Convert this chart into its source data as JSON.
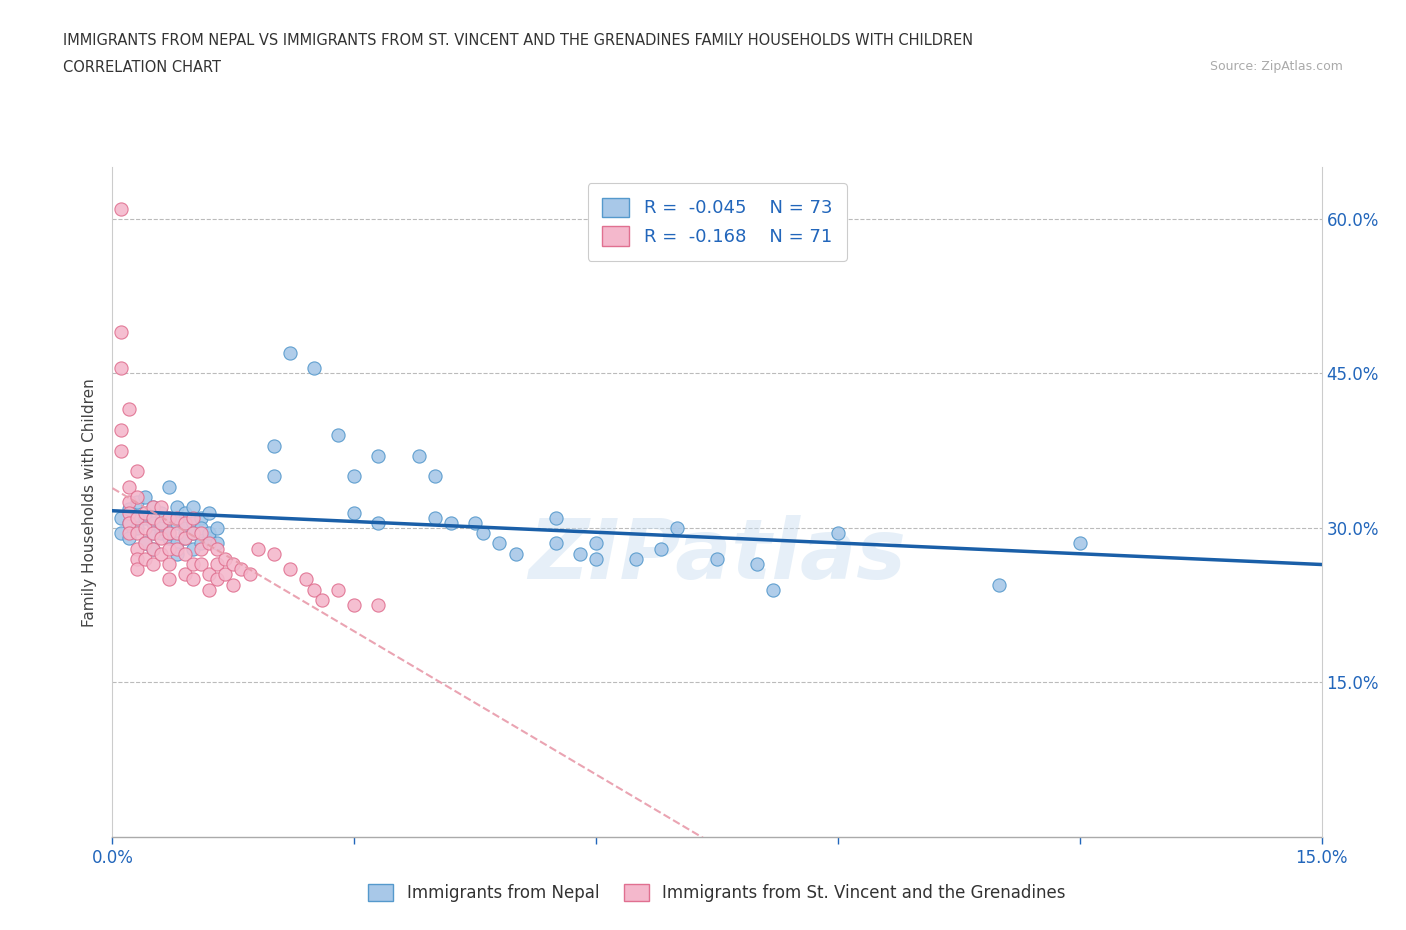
{
  "title_line1": "IMMIGRANTS FROM NEPAL VS IMMIGRANTS FROM ST. VINCENT AND THE GRENADINES FAMILY HOUSEHOLDS WITH CHILDREN",
  "title_line2": "CORRELATION CHART",
  "source_text": "Source: ZipAtlas.com",
  "ylabel": "Family Households with Children",
  "xlim": [
    0.0,
    0.15
  ],
  "ylim": [
    0.0,
    0.65
  ],
  "yticks": [
    0.0,
    0.15,
    0.3,
    0.45,
    0.6
  ],
  "yticklabels": [
    "",
    "15.0%",
    "30.0%",
    "45.0%",
    "60.0%"
  ],
  "xticks": [
    0.0,
    0.03,
    0.06,
    0.09,
    0.12,
    0.15
  ],
  "xticklabels": [
    "0.0%",
    "",
    "",
    "",
    "",
    "15.0%"
  ],
  "nepal_color": "#a8c8e8",
  "nepal_edge_color": "#5599cc",
  "svg_color": "#f4b8cc",
  "svg_edge_color": "#e07090",
  "nepal_R": -0.045,
  "nepal_N": 73,
  "svg_R": -0.168,
  "svg_N": 71,
  "legend_label1": "Immigrants from Nepal",
  "legend_label2": "Immigrants from St. Vincent and the Grenadines",
  "watermark": "ZIPatlas",
  "nepal_line_color": "#1a5fa8",
  "svg_line_color": "#e89aaa",
  "grid_color": "#bbbbbb",
  "nepal_scatter": [
    [
      0.001,
      0.31
    ],
    [
      0.001,
      0.295
    ],
    [
      0.002,
      0.318
    ],
    [
      0.002,
      0.305
    ],
    [
      0.002,
      0.29
    ],
    [
      0.003,
      0.312
    ],
    [
      0.003,
      0.325
    ],
    [
      0.003,
      0.3
    ],
    [
      0.004,
      0.285
    ],
    [
      0.004,
      0.33
    ],
    [
      0.004,
      0.31
    ],
    [
      0.005,
      0.295
    ],
    [
      0.005,
      0.32
    ],
    [
      0.005,
      0.305
    ],
    [
      0.005,
      0.28
    ],
    [
      0.006,
      0.295
    ],
    [
      0.006,
      0.315
    ],
    [
      0.006,
      0.3
    ],
    [
      0.007,
      0.29
    ],
    [
      0.007,
      0.34
    ],
    [
      0.007,
      0.31
    ],
    [
      0.007,
      0.295
    ],
    [
      0.008,
      0.285
    ],
    [
      0.008,
      0.32
    ],
    [
      0.008,
      0.305
    ],
    [
      0.008,
      0.275
    ],
    [
      0.009,
      0.315
    ],
    [
      0.009,
      0.295
    ],
    [
      0.009,
      0.3
    ],
    [
      0.009,
      0.29
    ],
    [
      0.01,
      0.28
    ],
    [
      0.01,
      0.305
    ],
    [
      0.01,
      0.32
    ],
    [
      0.01,
      0.295
    ],
    [
      0.011,
      0.31
    ],
    [
      0.011,
      0.285
    ],
    [
      0.011,
      0.3
    ],
    [
      0.012,
      0.29
    ],
    [
      0.012,
      0.315
    ],
    [
      0.012,
      0.295
    ],
    [
      0.013,
      0.3
    ],
    [
      0.013,
      0.285
    ],
    [
      0.02,
      0.38
    ],
    [
      0.02,
      0.35
    ],
    [
      0.022,
      0.47
    ],
    [
      0.025,
      0.455
    ],
    [
      0.028,
      0.39
    ],
    [
      0.03,
      0.315
    ],
    [
      0.03,
      0.35
    ],
    [
      0.033,
      0.305
    ],
    [
      0.033,
      0.37
    ],
    [
      0.038,
      0.37
    ],
    [
      0.04,
      0.35
    ],
    [
      0.04,
      0.31
    ],
    [
      0.042,
      0.305
    ],
    [
      0.045,
      0.305
    ],
    [
      0.046,
      0.295
    ],
    [
      0.048,
      0.285
    ],
    [
      0.05,
      0.275
    ],
    [
      0.055,
      0.285
    ],
    [
      0.055,
      0.31
    ],
    [
      0.058,
      0.275
    ],
    [
      0.06,
      0.27
    ],
    [
      0.06,
      0.285
    ],
    [
      0.065,
      0.27
    ],
    [
      0.068,
      0.28
    ],
    [
      0.07,
      0.3
    ],
    [
      0.075,
      0.27
    ],
    [
      0.08,
      0.265
    ],
    [
      0.082,
      0.24
    ],
    [
      0.09,
      0.295
    ],
    [
      0.11,
      0.245
    ],
    [
      0.12,
      0.285
    ]
  ],
  "svg_scatter": [
    [
      0.001,
      0.61
    ],
    [
      0.001,
      0.49
    ],
    [
      0.001,
      0.455
    ],
    [
      0.001,
      0.395
    ],
    [
      0.001,
      0.375
    ],
    [
      0.002,
      0.415
    ],
    [
      0.002,
      0.34
    ],
    [
      0.002,
      0.325
    ],
    [
      0.002,
      0.315
    ],
    [
      0.002,
      0.305
    ],
    [
      0.002,
      0.295
    ],
    [
      0.003,
      0.355
    ],
    [
      0.003,
      0.33
    ],
    [
      0.003,
      0.31
    ],
    [
      0.003,
      0.295
    ],
    [
      0.003,
      0.28
    ],
    [
      0.003,
      0.27
    ],
    [
      0.003,
      0.26
    ],
    [
      0.004,
      0.315
    ],
    [
      0.004,
      0.3
    ],
    [
      0.004,
      0.285
    ],
    [
      0.004,
      0.27
    ],
    [
      0.005,
      0.32
    ],
    [
      0.005,
      0.31
    ],
    [
      0.005,
      0.295
    ],
    [
      0.005,
      0.28
    ],
    [
      0.005,
      0.265
    ],
    [
      0.006,
      0.32
    ],
    [
      0.006,
      0.305
    ],
    [
      0.006,
      0.29
    ],
    [
      0.006,
      0.275
    ],
    [
      0.007,
      0.31
    ],
    [
      0.007,
      0.295
    ],
    [
      0.007,
      0.28
    ],
    [
      0.007,
      0.265
    ],
    [
      0.007,
      0.25
    ],
    [
      0.008,
      0.31
    ],
    [
      0.008,
      0.295
    ],
    [
      0.008,
      0.28
    ],
    [
      0.009,
      0.305
    ],
    [
      0.009,
      0.29
    ],
    [
      0.009,
      0.275
    ],
    [
      0.009,
      0.255
    ],
    [
      0.01,
      0.31
    ],
    [
      0.01,
      0.295
    ],
    [
      0.01,
      0.265
    ],
    [
      0.01,
      0.25
    ],
    [
      0.011,
      0.295
    ],
    [
      0.011,
      0.28
    ],
    [
      0.011,
      0.265
    ],
    [
      0.012,
      0.285
    ],
    [
      0.012,
      0.255
    ],
    [
      0.012,
      0.24
    ],
    [
      0.013,
      0.28
    ],
    [
      0.013,
      0.265
    ],
    [
      0.013,
      0.25
    ],
    [
      0.014,
      0.27
    ],
    [
      0.014,
      0.255
    ],
    [
      0.015,
      0.265
    ],
    [
      0.015,
      0.245
    ],
    [
      0.016,
      0.26
    ],
    [
      0.017,
      0.255
    ],
    [
      0.018,
      0.28
    ],
    [
      0.02,
      0.275
    ],
    [
      0.022,
      0.26
    ],
    [
      0.024,
      0.25
    ],
    [
      0.025,
      0.24
    ],
    [
      0.026,
      0.23
    ],
    [
      0.028,
      0.24
    ],
    [
      0.03,
      0.225
    ],
    [
      0.033,
      0.225
    ]
  ]
}
